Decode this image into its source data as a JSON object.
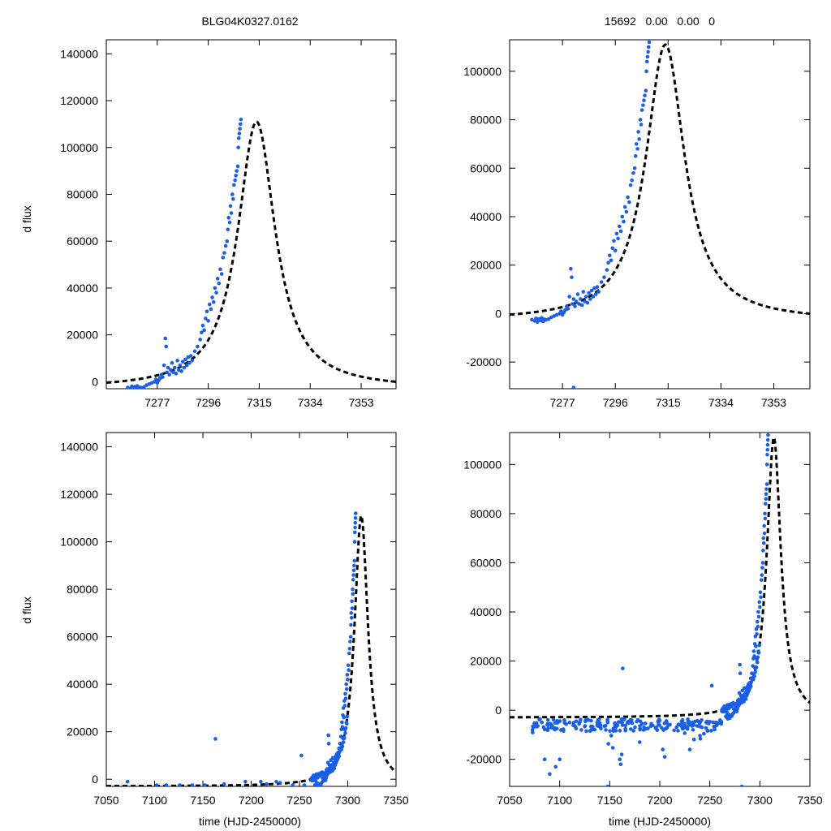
{
  "figure": {
    "title_left": "BLG04K0327.0162",
    "title_right": "15692   0.00   0.00   0",
    "ylabel": "d flux",
    "xlabel": "time (HJD-2450000)"
  },
  "colors": {
    "data": "#1a5fe6",
    "model": "#000000"
  },
  "model": {
    "t0": 7314,
    "amplitude": 114000,
    "baseline": -3000,
    "tau": 8.5
  },
  "chart_data": [
    {
      "type": "scatter",
      "panel": "top-left",
      "title": "BLG04K0327.0162",
      "xlabel": "",
      "ylabel": "d flux",
      "xlim": [
        7258,
        7366
      ],
      "ylim": [
        -3000,
        146000
      ],
      "xticks": [
        7277,
        7296,
        7315,
        7334,
        7353
      ],
      "yticks": [
        0,
        20000,
        40000,
        60000,
        80000,
        100000,
        120000,
        140000
      ]
    },
    {
      "type": "scatter",
      "panel": "top-right",
      "title": "15692   0.00   0.00   0",
      "xlabel": "",
      "ylabel": "",
      "xlim": [
        7258,
        7366
      ],
      "ylim": [
        -31000,
        113000
      ],
      "xticks": [
        7277,
        7296,
        7315,
        7334,
        7353
      ],
      "yticks": [
        -20000,
        0,
        20000,
        40000,
        60000,
        80000,
        100000
      ]
    },
    {
      "type": "scatter",
      "panel": "bottom-left",
      "title": "",
      "xlabel": "time (HJD-2450000)",
      "ylabel": "d flux",
      "xlim": [
        7050,
        7350
      ],
      "ylim": [
        -3000,
        146000
      ],
      "xticks": [
        7050,
        7100,
        7150,
        7200,
        7250,
        7300,
        7350
      ],
      "yticks": [
        0,
        20000,
        40000,
        60000,
        80000,
        100000,
        120000,
        140000
      ]
    },
    {
      "type": "scatter",
      "panel": "bottom-right",
      "title": "",
      "xlabel": "time (HJD-2450000)",
      "ylabel": "",
      "xlim": [
        7050,
        7350
      ],
      "ylim": [
        -31000,
        113000
      ],
      "xticks": [
        7050,
        7100,
        7150,
        7200,
        7250,
        7300,
        7350
      ],
      "yticks": [
        -20000,
        0,
        20000,
        40000,
        60000,
        80000,
        100000
      ]
    }
  ],
  "observations": {
    "rise": [
      [
        7266,
        -2500
      ],
      [
        7267,
        -3000
      ],
      [
        7267.5,
        -2000
      ],
      [
        7268,
        -3500
      ],
      [
        7268.5,
        -2200
      ],
      [
        7269,
        -2800
      ],
      [
        7269.5,
        -1800
      ],
      [
        7270,
        -3200
      ],
      [
        7270.5,
        -2400
      ],
      [
        7271,
        -2600
      ],
      [
        7272,
        -2300
      ],
      [
        7273,
        -1500
      ],
      [
        7274,
        -1000
      ],
      [
        7275,
        -500
      ],
      [
        7276,
        0
      ],
      [
        7276.5,
        1000
      ],
      [
        7277,
        -500
      ],
      [
        7277.5,
        500
      ],
      [
        7278,
        1500
      ],
      [
        7278.5,
        3000
      ],
      [
        7279,
        2000
      ],
      [
        7279.5,
        7000
      ],
      [
        7280,
        18500
      ],
      [
        7280.3,
        15000
      ],
      [
        7280.6,
        4000
      ],
      [
        7281,
        6000
      ],
      [
        7281.5,
        3000
      ],
      [
        7282,
        5000
      ],
      [
        7282.5,
        8000
      ],
      [
        7283,
        4000
      ],
      [
        7283.5,
        6000
      ],
      [
        7284,
        3500
      ],
      [
        7284.5,
        9000
      ],
      [
        7285,
        5000
      ],
      [
        7285.5,
        7000
      ],
      [
        7286,
        4500
      ],
      [
        7286.5,
        8500
      ],
      [
        7287,
        6000
      ],
      [
        7287.5,
        9500
      ],
      [
        7288,
        7000
      ],
      [
        7288.5,
        10500
      ],
      [
        7289,
        8000
      ],
      [
        7289.5,
        11000
      ],
      [
        7290,
        9000
      ],
      [
        7291,
        13000
      ],
      [
        7292,
        15000
      ],
      [
        7293,
        18000
      ],
      [
        7293.5,
        21000
      ],
      [
        7294,
        24000
      ],
      [
        7294.5,
        22000
      ],
      [
        7295,
        27000
      ],
      [
        7295.5,
        30000
      ],
      [
        7296,
        26000
      ],
      [
        7296.5,
        33000
      ],
      [
        7297,
        31000
      ],
      [
        7297.5,
        36000
      ],
      [
        7298,
        34000
      ],
      [
        7298.5,
        40000
      ],
      [
        7299,
        38000
      ],
      [
        7299.5,
        44000
      ],
      [
        7300,
        42000
      ],
      [
        7300.5,
        48000
      ],
      [
        7301,
        46000
      ],
      [
        7301.5,
        53000
      ],
      [
        7302,
        55000
      ],
      [
        7302.5,
        58000
      ],
      [
        7303,
        60000
      ],
      [
        7303.3,
        65000
      ],
      [
        7303.6,
        70000
      ],
      [
        7304,
        68000
      ],
      [
        7304.3,
        75000
      ],
      [
        7304.6,
        72000
      ],
      [
        7305,
        80000
      ],
      [
        7305.3,
        78000
      ],
      [
        7305.6,
        84000
      ],
      [
        7306,
        86000
      ],
      [
        7306.3,
        88000
      ],
      [
        7306.6,
        90000
      ],
      [
        7307,
        92000
      ],
      [
        7307.2,
        100000
      ],
      [
        7307.4,
        104000
      ],
      [
        7307.6,
        106000
      ],
      [
        7307.8,
        108000
      ],
      [
        7308,
        110000
      ],
      [
        7308.2,
        112000
      ]
    ],
    "baseline_x": [
      7072,
      7145
    ],
    "baseline_center": -6000,
    "baseline_step": 0.6,
    "baseline_count": 220,
    "outliers_bottom_right": [
      [
        7163,
        17000
      ],
      [
        7160,
        -20000
      ],
      [
        7161,
        -22000
      ],
      [
        7162,
        -18000
      ],
      [
        7205,
        -19000
      ],
      [
        7203,
        -16000
      ],
      [
        7230,
        -16000
      ],
      [
        7252,
        10000
      ],
      [
        7282,
        -31000
      ],
      [
        7148,
        -31000
      ],
      [
        7085,
        -20000
      ],
      [
        7090,
        -26000
      ],
      [
        7096,
        -23000
      ],
      [
        7100,
        -20000
      ],
      [
        7180,
        -13000
      ]
    ],
    "sparse_bottom_left": [
      [
        7072,
        -1000
      ],
      [
        7102,
        -2500
      ],
      [
        7112,
        -2500
      ],
      [
        7126,
        -2500
      ],
      [
        7139,
        -2500
      ],
      [
        7152,
        -2500
      ],
      [
        7163,
        17000
      ],
      [
        7172,
        -2000
      ],
      [
        7194,
        -1000
      ],
      [
        7210,
        -1000
      ],
      [
        7216,
        -2000
      ],
      [
        7226,
        -1000
      ],
      [
        7230,
        -1500
      ],
      [
        7243,
        -2500
      ],
      [
        7252,
        10000
      ],
      [
        7255,
        -2500
      ]
    ]
  }
}
